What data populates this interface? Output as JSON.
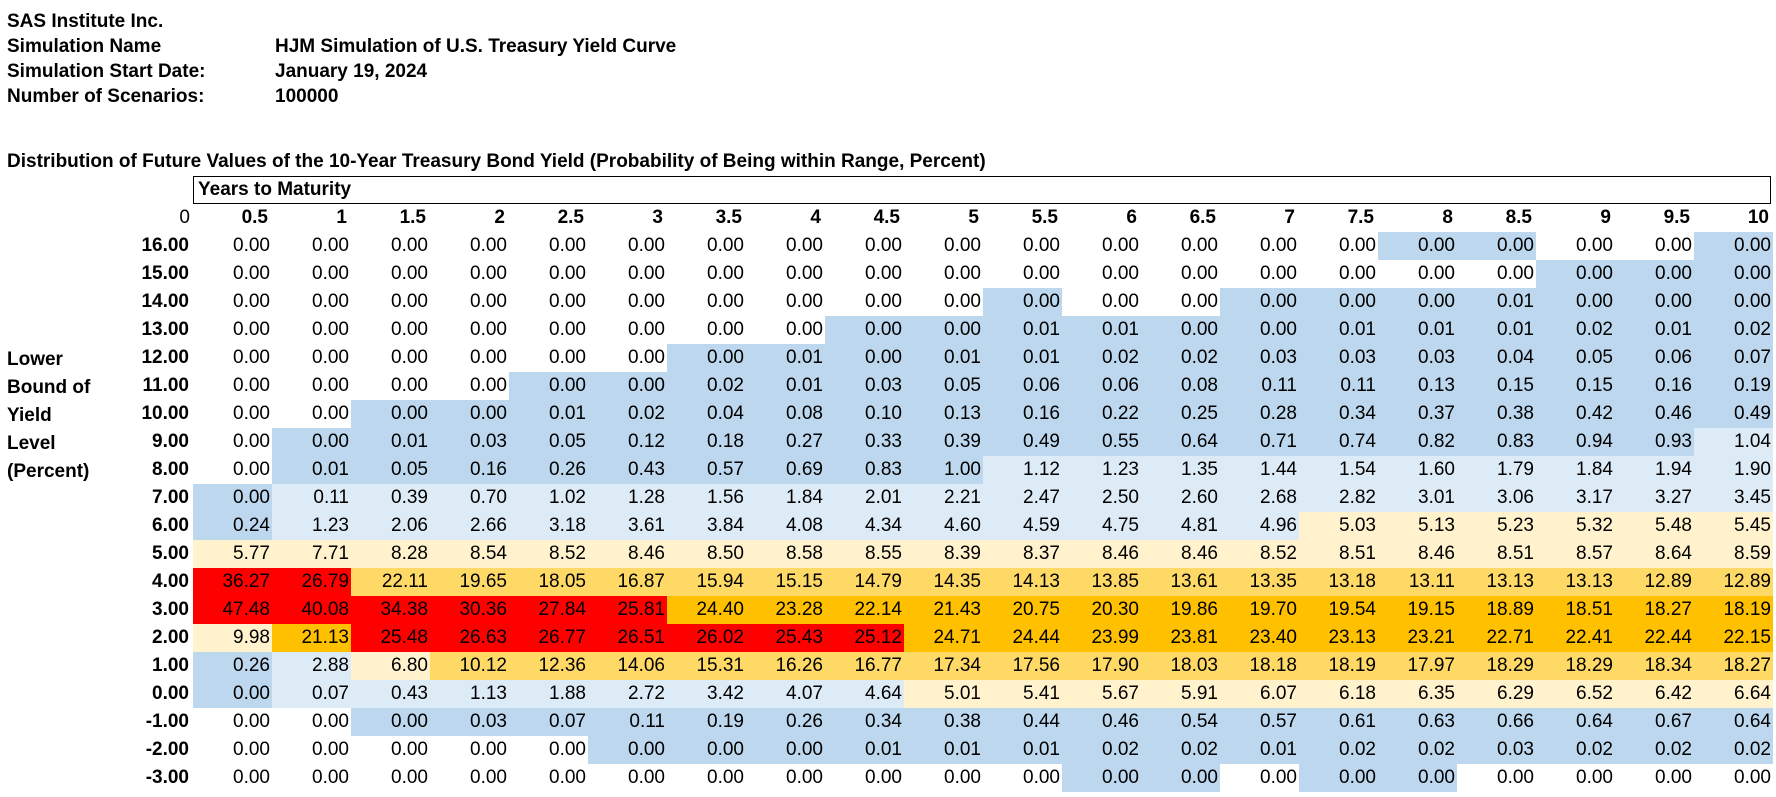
{
  "header": {
    "company": "SAS Institute Inc.",
    "rows": [
      {
        "label": "Simulation Name",
        "value": "HJM Simulation of U.S. Treasury Yield Curve"
      },
      {
        "label": "Simulation Start Date:",
        "value": "January 19, 2024"
      },
      {
        "label": "Number of Scenarios:",
        "value": "100000"
      }
    ]
  },
  "colors": {
    "blue": "#bdd7ee",
    "lightblue": "#ddebf7",
    "white": "#ffffff",
    "lightyellow": "#fff2cc",
    "yellow": "#ffd966",
    "orange": "#ffc000",
    "red": "#ff0000"
  },
  "chart_data": {
    "type": "heatmap",
    "title": "Distribution of Future Values of the 10-Year Treasury Bond Yield (Probability of Being within Range, Percent)",
    "xlabel": "Years to Maturity",
    "ylabel_lines": [
      "Lower",
      "Bound of",
      "Yield",
      "Level",
      "(Percent)"
    ],
    "corner": "0",
    "x": [
      "0.5",
      "1",
      "1.5",
      "2",
      "2.5",
      "3",
      "3.5",
      "4",
      "4.5",
      "5",
      "5.5",
      "6",
      "6.5",
      "7",
      "7.5",
      "8",
      "8.5",
      "9",
      "9.5",
      "10"
    ],
    "y": [
      "16.00",
      "15.00",
      "14.00",
      "13.00",
      "12.00",
      "11.00",
      "10.00",
      "9.00",
      "8.00",
      "7.00",
      "6.00",
      "5.00",
      "4.00",
      "3.00",
      "2.00",
      "1.00",
      "0.00",
      "-1.00",
      "-2.00",
      "-3.00"
    ],
    "values": [
      [
        "0.00",
        "0.00",
        "0.00",
        "0.00",
        "0.00",
        "0.00",
        "0.00",
        "0.00",
        "0.00",
        "0.00",
        "0.00",
        "0.00",
        "0.00",
        "0.00",
        "0.00",
        "0.00",
        "0.00",
        "0.00",
        "0.00",
        "0.00"
      ],
      [
        "0.00",
        "0.00",
        "0.00",
        "0.00",
        "0.00",
        "0.00",
        "0.00",
        "0.00",
        "0.00",
        "0.00",
        "0.00",
        "0.00",
        "0.00",
        "0.00",
        "0.00",
        "0.00",
        "0.00",
        "0.00",
        "0.00",
        "0.00"
      ],
      [
        "0.00",
        "0.00",
        "0.00",
        "0.00",
        "0.00",
        "0.00",
        "0.00",
        "0.00",
        "0.00",
        "0.00",
        "0.00",
        "0.00",
        "0.00",
        "0.00",
        "0.00",
        "0.00",
        "0.01",
        "0.00",
        "0.00",
        "0.00"
      ],
      [
        "0.00",
        "0.00",
        "0.00",
        "0.00",
        "0.00",
        "0.00",
        "0.00",
        "0.00",
        "0.00",
        "0.00",
        "0.01",
        "0.01",
        "0.00",
        "0.00",
        "0.01",
        "0.01",
        "0.01",
        "0.02",
        "0.01",
        "0.02"
      ],
      [
        "0.00",
        "0.00",
        "0.00",
        "0.00",
        "0.00",
        "0.00",
        "0.00",
        "0.01",
        "0.00",
        "0.01",
        "0.01",
        "0.02",
        "0.02",
        "0.03",
        "0.03",
        "0.03",
        "0.04",
        "0.05",
        "0.06",
        "0.07"
      ],
      [
        "0.00",
        "0.00",
        "0.00",
        "0.00",
        "0.00",
        "0.00",
        "0.02",
        "0.01",
        "0.03",
        "0.05",
        "0.06",
        "0.06",
        "0.08",
        "0.11",
        "0.11",
        "0.13",
        "0.15",
        "0.15",
        "0.16",
        "0.19"
      ],
      [
        "0.00",
        "0.00",
        "0.00",
        "0.00",
        "0.01",
        "0.02",
        "0.04",
        "0.08",
        "0.10",
        "0.13",
        "0.16",
        "0.22",
        "0.25",
        "0.28",
        "0.34",
        "0.37",
        "0.38",
        "0.42",
        "0.46",
        "0.49"
      ],
      [
        "0.00",
        "0.00",
        "0.01",
        "0.03",
        "0.05",
        "0.12",
        "0.18",
        "0.27",
        "0.33",
        "0.39",
        "0.49",
        "0.55",
        "0.64",
        "0.71",
        "0.74",
        "0.82",
        "0.83",
        "0.94",
        "0.93",
        "1.04"
      ],
      [
        "0.00",
        "0.01",
        "0.05",
        "0.16",
        "0.26",
        "0.43",
        "0.57",
        "0.69",
        "0.83",
        "1.00",
        "1.12",
        "1.23",
        "1.35",
        "1.44",
        "1.54",
        "1.60",
        "1.79",
        "1.84",
        "1.94",
        "1.90"
      ],
      [
        "0.00",
        "0.11",
        "0.39",
        "0.70",
        "1.02",
        "1.28",
        "1.56",
        "1.84",
        "2.01",
        "2.21",
        "2.47",
        "2.50",
        "2.60",
        "2.68",
        "2.82",
        "3.01",
        "3.06",
        "3.17",
        "3.27",
        "3.45"
      ],
      [
        "0.24",
        "1.23",
        "2.06",
        "2.66",
        "3.18",
        "3.61",
        "3.84",
        "4.08",
        "4.34",
        "4.60",
        "4.59",
        "4.75",
        "4.81",
        "4.96",
        "5.03",
        "5.13",
        "5.23",
        "5.32",
        "5.48",
        "5.45"
      ],
      [
        "5.77",
        "7.71",
        "8.28",
        "8.54",
        "8.52",
        "8.46",
        "8.50",
        "8.58",
        "8.55",
        "8.39",
        "8.37",
        "8.46",
        "8.46",
        "8.52",
        "8.51",
        "8.46",
        "8.51",
        "8.57",
        "8.64",
        "8.59"
      ],
      [
        "36.27",
        "26.79",
        "22.11",
        "19.65",
        "18.05",
        "16.87",
        "15.94",
        "15.15",
        "14.79",
        "14.35",
        "14.13",
        "13.85",
        "13.61",
        "13.35",
        "13.18",
        "13.11",
        "13.13",
        "13.13",
        "12.89",
        "12.89"
      ],
      [
        "47.48",
        "40.08",
        "34.38",
        "30.36",
        "27.84",
        "25.81",
        "24.40",
        "23.28",
        "22.14",
        "21.43",
        "20.75",
        "20.30",
        "19.86",
        "19.70",
        "19.54",
        "19.15",
        "18.89",
        "18.51",
        "18.27",
        "18.19"
      ],
      [
        "9.98",
        "21.13",
        "25.48",
        "26.63",
        "26.77",
        "26.51",
        "26.02",
        "25.43",
        "25.12",
        "24.71",
        "24.44",
        "23.99",
        "23.81",
        "23.40",
        "23.13",
        "23.21",
        "22.71",
        "22.41",
        "22.44",
        "22.15"
      ],
      [
        "0.26",
        "2.88",
        "6.80",
        "10.12",
        "12.36",
        "14.06",
        "15.31",
        "16.26",
        "16.77",
        "17.34",
        "17.56",
        "17.90",
        "18.03",
        "18.18",
        "18.19",
        "17.97",
        "18.29",
        "18.29",
        "18.34",
        "18.27"
      ],
      [
        "0.00",
        "0.07",
        "0.43",
        "1.13",
        "1.88",
        "2.72",
        "3.42",
        "4.07",
        "4.64",
        "5.01",
        "5.41",
        "5.67",
        "5.91",
        "6.07",
        "6.18",
        "6.35",
        "6.29",
        "6.52",
        "6.42",
        "6.64"
      ],
      [
        "0.00",
        "0.00",
        "0.00",
        "0.03",
        "0.07",
        "0.11",
        "0.19",
        "0.26",
        "0.34",
        "0.38",
        "0.44",
        "0.46",
        "0.54",
        "0.57",
        "0.61",
        "0.63",
        "0.66",
        "0.64",
        "0.67",
        "0.64"
      ],
      [
        "0.00",
        "0.00",
        "0.00",
        "0.00",
        "0.00",
        "0.00",
        "0.00",
        "0.00",
        "0.01",
        "0.01",
        "0.01",
        "0.02",
        "0.02",
        "0.01",
        "0.02",
        "0.02",
        "0.03",
        "0.02",
        "0.02",
        "0.02"
      ],
      [
        "0.00",
        "0.00",
        "0.00",
        "0.00",
        "0.00",
        "0.00",
        "0.00",
        "0.00",
        "0.00",
        "0.00",
        "0.00",
        "0.00",
        "0.00",
        "0.00",
        "0.00",
        "0.00",
        "0.00",
        "0.00",
        "0.00",
        "0.00"
      ]
    ],
    "cell_colors": [
      "WWWWWWWWWWWWWWWBBWWB",
      "WWWWWWWWWWWWWWWWWBBB",
      "WWWWWWWWWWBWWBBBBBBB",
      "WWWWWWWWBBBBBBBBBBBB",
      "WWWWWWBBBBBBBBBBBBBB",
      "WWWWBBBBBBBBBBBBBBBB",
      "WWBBBBBBBBBBBBBBBBBB",
      "WBBBBBBBBBBBBBBBBBBL",
      "WBBBBBBBBBLLLLLLLLLL",
      "BLLLLLLLLLLLLLLLLLLL",
      "BLLLLLLLLLLLLLYYYYYY",
      "YYYYYYYYYYYYYYYYYYYY",
      "RROOOOOOOOOOOOOOOOOO",
      "RRRRRRGGGGGGGGGGGGGG",
      "YGRRRRRRRGGGGGGGGGGG",
      "BLYOOOOOOOOOOOOOOOOO",
      "BLLLLLLLLYYYYYYYYYYY",
      "WWBBBBBBBBBBBBBBBBBB",
      "WWWWWBBBBBBBBBBBBBBB",
      "WWWWWWWWWWWBBWBBWWWW"
    ]
  }
}
